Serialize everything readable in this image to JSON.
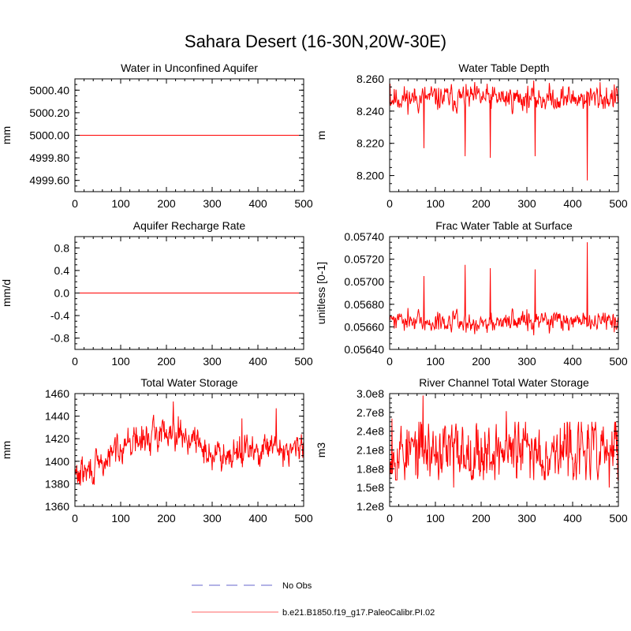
{
  "title": "Sahara Desert (16-30N,20W-30E)",
  "colors": {
    "model": "#ff0000",
    "obs": "#9999dd",
    "axis": "#000000"
  },
  "legend": {
    "placement": "bottom-center",
    "entries": [
      {
        "label": "No Obs",
        "style": "dashed",
        "color": "#9999dd"
      },
      {
        "label": "b.e21.B1850.f19_g17.PaleoCalibr.PI.02",
        "style": "solid",
        "color": "#ff0000"
      }
    ]
  },
  "chart_data": [
    {
      "type": "line",
      "title": "Water in Unconfined Aquifer",
      "ylabel": "mm",
      "xlim": [
        0,
        500
      ],
      "ylim": [
        4999.5,
        5000.5
      ],
      "xticks": [
        "0",
        "100",
        "200",
        "300",
        "400",
        "500"
      ],
      "yticks": [
        4999.6,
        4999.8,
        5000.0,
        5000.2,
        5000.4
      ],
      "yticklabels": [
        "4999.60",
        "4999.80",
        "5000.00",
        "5000.20",
        "5000.40"
      ],
      "grid": false,
      "series": [
        {
          "kind": "constant",
          "value": 5000.0,
          "n": 500
        }
      ]
    },
    {
      "type": "line",
      "title": "Water Table Depth",
      "ylabel": "m",
      "xlim": [
        0,
        500
      ],
      "ylim": [
        8.19,
        8.26
      ],
      "xticks": [
        "0",
        "100",
        "200",
        "300",
        "400",
        "500"
      ],
      "yticks": [
        8.2,
        8.22,
        8.24,
        8.26
      ],
      "yticklabels": [
        "8.200",
        "8.220",
        "8.240",
        "8.260"
      ],
      "grid": false,
      "series": [
        {
          "kind": "noisy",
          "n": 500,
          "mean": 8.248,
          "noise": 0.0035,
          "seed": 11,
          "high": 8.259,
          "low": 8.208,
          "spikes": [
            [
              1,
              8.257
            ],
            [
              75,
              8.217
            ],
            [
              165,
              8.212
            ],
            [
              220,
              8.211
            ],
            [
              318,
              8.212
            ],
            [
              432,
              8.197
            ],
            [
              460,
              8.258
            ]
          ]
        }
      ]
    },
    {
      "type": "line",
      "title": "Aquifer Recharge Rate",
      "ylabel": "mm/d",
      "xlim": [
        0,
        500
      ],
      "ylim": [
        -1.0,
        1.0
      ],
      "xticks": [
        "0",
        "100",
        "200",
        "300",
        "400",
        "500"
      ],
      "yticks": [
        -0.8,
        -0.4,
        0.0,
        0.4,
        0.8
      ],
      "yticklabels": [
        "-0.8",
        "-0.4",
        "0.0",
        "0.4",
        "0.8"
      ],
      "grid": false,
      "series": [
        {
          "kind": "constant",
          "value": 0.0,
          "n": 500
        }
      ]
    },
    {
      "type": "line",
      "title": "Frac Water Table at Surface",
      "ylabel": "unitless [0-1]",
      "xlim": [
        0,
        500
      ],
      "ylim": [
        0.0564,
        0.0574
      ],
      "xticks": [
        "0",
        "100",
        "200",
        "300",
        "400",
        "500"
      ],
      "yticks": [
        0.0564,
        0.0566,
        0.0568,
        0.057,
        0.0572,
        0.0574
      ],
      "yticklabels": [
        "0.05640",
        "0.05660",
        "0.05680",
        "0.05700",
        "0.05720",
        "0.05740"
      ],
      "grid": false,
      "series": [
        {
          "kind": "noisy",
          "n": 500,
          "mean": 0.05665,
          "noise": 4e-05,
          "seed": 11,
          "mirror": true,
          "high": 0.05695,
          "low": 0.0565,
          "spikes": [
            [
              75,
              0.05705
            ],
            [
              165,
              0.05715
            ],
            [
              220,
              0.05712
            ],
            [
              318,
              0.05711
            ],
            [
              432,
              0.05735
            ]
          ]
        }
      ]
    },
    {
      "type": "line",
      "title": "Total Water Storage",
      "ylabel": "mm",
      "xlim": [
        0,
        500
      ],
      "ylim": [
        1360,
        1460
      ],
      "xticks": [
        "0",
        "100",
        "200",
        "300",
        "400",
        "500"
      ],
      "yticks": [
        1360,
        1380,
        1400,
        1420,
        1440,
        1460
      ],
      "yticklabels": [
        "1360",
        "1380",
        "1400",
        "1420",
        "1440",
        "1460"
      ],
      "grid": false,
      "series": [
        {
          "kind": "trend",
          "n": 500,
          "noise": 6,
          "seed": 29,
          "knots": [
            [
              0,
              1388
            ],
            [
              40,
              1392
            ],
            [
              70,
              1400
            ],
            [
              100,
              1416
            ],
            [
              150,
              1418
            ],
            [
              210,
              1430
            ],
            [
              260,
              1418
            ],
            [
              300,
              1405
            ],
            [
              350,
              1410
            ],
            [
              400,
              1408
            ],
            [
              450,
              1412
            ],
            [
              500,
              1410
            ]
          ],
          "spikes": [
            [
              10,
              1380
            ],
            [
              215,
              1453
            ],
            [
              440,
              1447
            ],
            [
              365,
              1438
            ],
            [
              300,
              1392
            ],
            [
              455,
              1395
            ]
          ]
        }
      ]
    },
    {
      "type": "line",
      "title": "River Channel Total Water Storage",
      "ylabel": "m3",
      "xlim": [
        0,
        500
      ],
      "ylim": [
        120000000.0,
        300000000.0
      ],
      "xticks": [
        "0",
        "100",
        "200",
        "300",
        "400",
        "500"
      ],
      "yticks": [
        120000000.0,
        150000000.0,
        180000000.0,
        210000000.0,
        240000000.0,
        270000000.0,
        300000000.0
      ],
      "yticklabels": [
        "1.2e8",
        "1.5e8",
        "1.8e8",
        "2.1e8",
        "2.4e8",
        "2.7e8",
        "3.0e8"
      ],
      "grid": false,
      "series": [
        {
          "kind": "noisy",
          "n": 500,
          "mean": 208000000.0,
          "noise": 22000000.0,
          "seed": 53,
          "high": 255000000.0,
          "low": 162000000.0,
          "spikes": [
            [
              73,
              297000000.0
            ],
            [
              255,
              272000000.0
            ],
            [
              140,
              150000000.0
            ],
            [
              480,
              150000000.0
            ],
            [
              5,
              260000000.0
            ]
          ]
        }
      ]
    }
  ]
}
